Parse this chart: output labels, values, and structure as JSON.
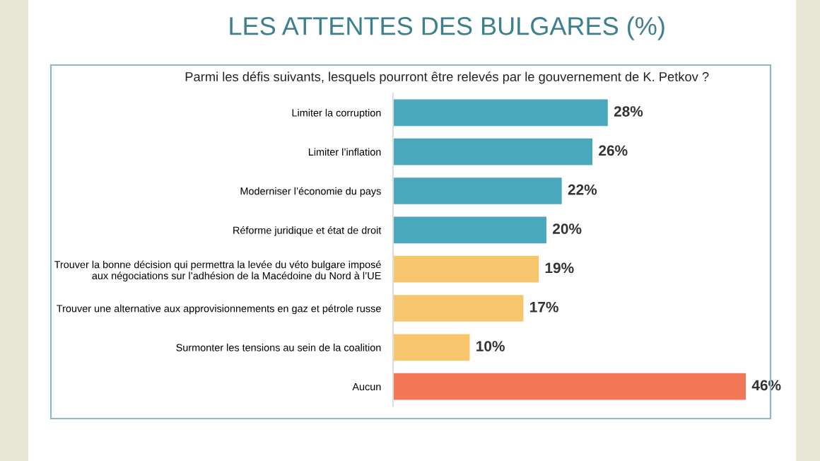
{
  "chart_data": {
    "type": "bar",
    "orientation": "horizontal",
    "title": "LES ATTENTES DES BULGARES (%)",
    "subtitle": "Parmi les défis suivants, lesquels pourront être relevés par le gouvernement de K. Petkov ?",
    "categories": [
      "Limiter la corruption",
      "Limiter l’inflation",
      "Moderniser l’économie du pays",
      "Réforme juridique et état de droit",
      "Trouver la bonne décision qui permettra la levée du véto bulgare imposé aux négociations sur l’adhésion de la Macédoine du Nord à l’UE",
      "Trouver une alternative aux approvisionnements en gaz et pétrole russe",
      "Surmonter les tensions au sein de la coalition",
      "Aucun"
    ],
    "values": [
      28,
      26,
      22,
      20,
      19,
      17,
      10,
      46
    ],
    "colors": [
      "#4aa8bc",
      "#4aa8bc",
      "#4aa8bc",
      "#4aa8bc",
      "#f7c66c",
      "#f7c66c",
      "#f7c66c",
      "#f27757"
    ],
    "value_labels": [
      "28%",
      "26%",
      "22%",
      "20%",
      "19%",
      "17%",
      "10%",
      "46%"
    ],
    "grid": false,
    "legend": false
  }
}
